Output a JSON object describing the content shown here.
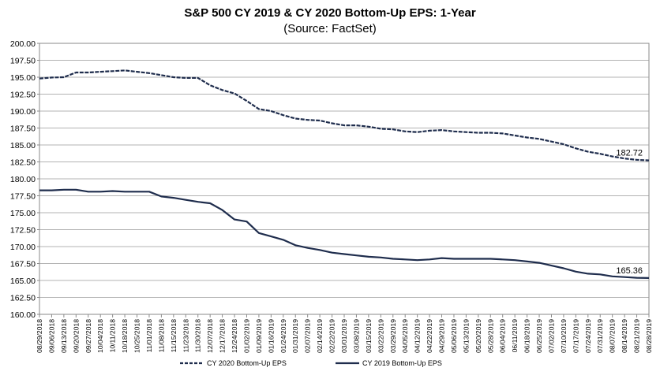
{
  "chart_data": {
    "type": "line",
    "title": "S&P 500 CY 2019 & CY 2020 Bottom-Up EPS: 1-Year",
    "subtitle": "(Source: FactSet)",
    "xlabel": "",
    "ylabel": "",
    "ylim": [
      160,
      200
    ],
    "yticks": [
      "160.00",
      "162.50",
      "165.00",
      "167.50",
      "170.00",
      "172.50",
      "175.00",
      "177.50",
      "180.00",
      "182.50",
      "185.00",
      "187.50",
      "190.00",
      "192.50",
      "195.00",
      "197.50",
      "200.00"
    ],
    "x_ticks": [
      "08/29/2018",
      "09/06/2018",
      "09/13/2018",
      "09/20/2018",
      "09/27/2018",
      "10/04/2018",
      "10/11/2018",
      "10/18/2018",
      "10/25/2018",
      "11/01/2018",
      "11/08/2018",
      "11/15/2018",
      "11/23/2018",
      "11/30/2018",
      "12/07/2018",
      "12/17/2018",
      "12/24/2018",
      "01/02/2019",
      "01/09/2019",
      "01/16/2019",
      "01/24/2019",
      "01/31/2019",
      "02/07/2019",
      "02/14/2019",
      "02/22/2019",
      "03/01/2019",
      "03/08/2019",
      "03/15/2019",
      "03/22/2019",
      "03/29/2019",
      "04/05/2019",
      "04/12/2019",
      "04/22/2019",
      "04/29/2019",
      "05/06/2019",
      "05/13/2019",
      "05/20/2019",
      "05/28/2019",
      "06/04/2019",
      "06/11/2019",
      "06/18/2019",
      "06/25/2019",
      "07/02/2019",
      "07/10/2019",
      "07/17/2019",
      "07/24/2019",
      "07/31/2019",
      "08/07/2019",
      "08/14/2019",
      "08/21/2019",
      "08/28/2019"
    ],
    "grid": true,
    "legend_position": "bottom",
    "series": [
      {
        "name": "CY 2020 Bottom-Up EPS",
        "style": "dashed",
        "color": "#1f2d4d",
        "end_label": "182.72",
        "values": [
          194.8,
          194.95,
          195.0,
          195.7,
          195.7,
          195.8,
          195.9,
          196.0,
          195.8,
          195.6,
          195.3,
          195.0,
          194.9,
          194.9,
          193.8,
          193.1,
          192.6,
          191.5,
          190.3,
          190.0,
          189.4,
          188.9,
          188.7,
          188.6,
          188.2,
          187.9,
          187.9,
          187.7,
          187.4,
          187.3,
          187.0,
          186.9,
          187.1,
          187.2,
          187.0,
          186.9,
          186.8,
          186.8,
          186.7,
          186.4,
          186.1,
          185.9,
          185.5,
          185.1,
          184.5,
          184.0,
          183.7,
          183.3,
          183.0,
          182.8,
          182.72
        ]
      },
      {
        "name": "CY 2019 Bottom-Up EPS",
        "style": "solid",
        "color": "#1f2d4d",
        "end_label": "165.36",
        "values": [
          178.3,
          178.3,
          178.4,
          178.4,
          178.1,
          178.1,
          178.2,
          178.1,
          178.1,
          178.1,
          177.4,
          177.2,
          176.9,
          176.6,
          176.4,
          175.4,
          174.0,
          173.7,
          172.0,
          171.5,
          171.0,
          170.2,
          169.8,
          169.5,
          169.1,
          168.9,
          168.7,
          168.5,
          168.4,
          168.2,
          168.1,
          168.0,
          168.1,
          168.3,
          168.2,
          168.2,
          168.2,
          168.2,
          168.1,
          168.0,
          167.8,
          167.6,
          167.2,
          166.8,
          166.3,
          166.0,
          165.9,
          165.6,
          165.5,
          165.4,
          165.36
        ]
      }
    ]
  }
}
